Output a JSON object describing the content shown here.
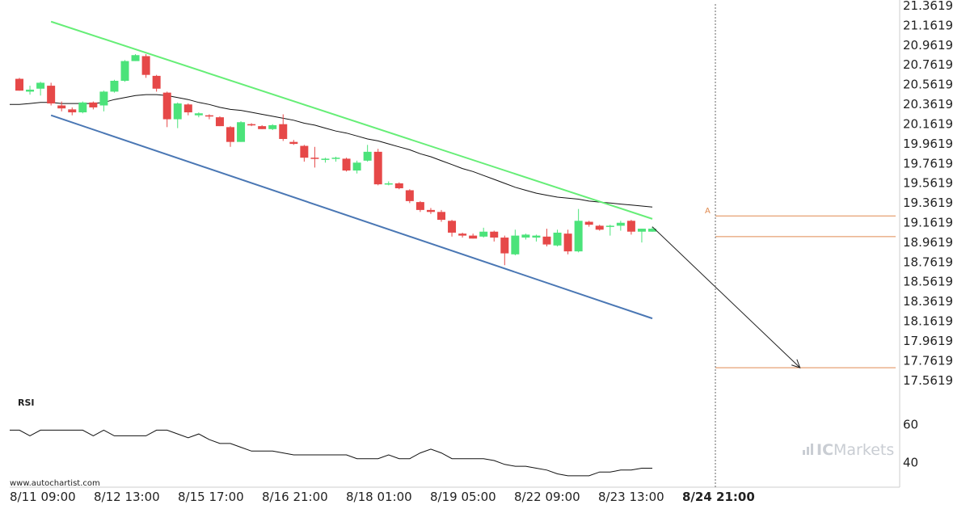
{
  "chart_data": {
    "type": "candlestick",
    "y_axis": {
      "ticks": [
        "21.3619",
        "21.1619",
        "20.9619",
        "20.7619",
        "20.5619",
        "20.3619",
        "20.1619",
        "19.9619",
        "19.7619",
        "19.5619",
        "19.3619",
        "19.1619",
        "18.9619",
        "18.7619",
        "18.5619",
        "18.3619",
        "18.1619",
        "17.9619",
        "17.7619",
        "17.5619"
      ],
      "range": [
        17.4619,
        21.3619
      ]
    },
    "x_axis": {
      "ticks": [
        "8/11 09:00",
        "8/12 13:00",
        "8/15 17:00",
        "8/16 21:00",
        "8/18 01:00",
        "8/19 05:00",
        "8/22 09:00",
        "8/23 13:00",
        "8/24 21:00"
      ],
      "highlight_last": true
    },
    "candles": [
      {
        "o": 20.62,
        "h": 20.63,
        "l": 20.5,
        "c": 20.5
      },
      {
        "o": 20.49,
        "h": 20.55,
        "l": 20.46,
        "c": 20.51
      },
      {
        "o": 20.52,
        "h": 20.59,
        "l": 20.45,
        "c": 20.58
      },
      {
        "o": 20.55,
        "h": 20.58,
        "l": 20.35,
        "c": 20.37
      },
      {
        "o": 20.35,
        "h": 20.39,
        "l": 20.29,
        "c": 20.32
      },
      {
        "o": 20.31,
        "h": 20.33,
        "l": 20.25,
        "c": 20.28
      },
      {
        "o": 20.28,
        "h": 20.39,
        "l": 20.27,
        "c": 20.38
      },
      {
        "o": 20.38,
        "h": 20.39,
        "l": 20.31,
        "c": 20.33
      },
      {
        "o": 20.35,
        "h": 20.5,
        "l": 20.29,
        "c": 20.49
      },
      {
        "o": 20.49,
        "h": 20.61,
        "l": 20.48,
        "c": 20.6
      },
      {
        "o": 20.6,
        "h": 20.81,
        "l": 20.59,
        "c": 20.8
      },
      {
        "o": 20.8,
        "h": 20.87,
        "l": 20.8,
        "c": 20.86
      },
      {
        "o": 20.85,
        "h": 20.87,
        "l": 20.63,
        "c": 20.66
      },
      {
        "o": 20.65,
        "h": 20.66,
        "l": 20.49,
        "c": 20.52
      },
      {
        "o": 20.48,
        "h": 20.49,
        "l": 20.13,
        "c": 20.21
      },
      {
        "o": 20.21,
        "h": 20.38,
        "l": 20.12,
        "c": 20.37
      },
      {
        "o": 20.36,
        "h": 20.37,
        "l": 20.25,
        "c": 20.28
      },
      {
        "o": 20.25,
        "h": 20.28,
        "l": 20.23,
        "c": 20.27
      },
      {
        "o": 20.25,
        "h": 20.26,
        "l": 20.21,
        "c": 20.24
      },
      {
        "o": 20.23,
        "h": 20.24,
        "l": 20.14,
        "c": 20.14
      },
      {
        "o": 20.13,
        "h": 20.14,
        "l": 19.93,
        "c": 19.98
      },
      {
        "o": 19.98,
        "h": 20.19,
        "l": 19.98,
        "c": 20.18
      },
      {
        "o": 20.16,
        "h": 20.17,
        "l": 20.14,
        "c": 20.15
      },
      {
        "o": 20.14,
        "h": 20.15,
        "l": 20.11,
        "c": 20.11
      },
      {
        "o": 20.11,
        "h": 20.16,
        "l": 20.1,
        "c": 20.15
      },
      {
        "o": 20.16,
        "h": 20.26,
        "l": 19.99,
        "c": 20.01
      },
      {
        "o": 19.98,
        "h": 20.0,
        "l": 19.95,
        "c": 19.96
      },
      {
        "o": 19.94,
        "h": 19.95,
        "l": 19.78,
        "c": 19.82
      },
      {
        "o": 19.82,
        "h": 19.93,
        "l": 19.72,
        "c": 19.81
      },
      {
        "o": 19.81,
        "h": 19.82,
        "l": 19.77,
        "c": 19.81
      },
      {
        "o": 19.81,
        "h": 19.83,
        "l": 19.78,
        "c": 19.82
      },
      {
        "o": 19.81,
        "h": 19.82,
        "l": 19.68,
        "c": 19.69
      },
      {
        "o": 19.69,
        "h": 19.79,
        "l": 19.66,
        "c": 19.77
      },
      {
        "o": 19.79,
        "h": 19.95,
        "l": 19.78,
        "c": 19.88
      },
      {
        "o": 19.88,
        "h": 19.91,
        "l": 19.54,
        "c": 19.55
      },
      {
        "o": 19.55,
        "h": 19.58,
        "l": 19.54,
        "c": 19.56
      },
      {
        "o": 19.56,
        "h": 19.57,
        "l": 19.5,
        "c": 19.51
      },
      {
        "o": 19.49,
        "h": 19.5,
        "l": 19.36,
        "c": 19.38
      },
      {
        "o": 19.37,
        "h": 19.38,
        "l": 19.27,
        "c": 19.29
      },
      {
        "o": 19.29,
        "h": 19.31,
        "l": 19.25,
        "c": 19.27
      },
      {
        "o": 19.27,
        "h": 19.29,
        "l": 19.17,
        "c": 19.19
      },
      {
        "o": 19.18,
        "h": 19.19,
        "l": 19.02,
        "c": 19.06
      },
      {
        "o": 19.05,
        "h": 19.06,
        "l": 19.01,
        "c": 19.03
      },
      {
        "o": 19.03,
        "h": 19.05,
        "l": 19.0,
        "c": 19.0
      },
      {
        "o": 19.02,
        "h": 19.11,
        "l": 19.01,
        "c": 19.07
      },
      {
        "o": 19.07,
        "h": 19.08,
        "l": 18.97,
        "c": 19.01
      },
      {
        "o": 19.01,
        "h": 19.03,
        "l": 18.73,
        "c": 18.85
      },
      {
        "o": 18.84,
        "h": 19.09,
        "l": 18.83,
        "c": 19.03
      },
      {
        "o": 19.01,
        "h": 19.05,
        "l": 18.99,
        "c": 19.04
      },
      {
        "o": 19.01,
        "h": 19.04,
        "l": 18.97,
        "c": 19.03
      },
      {
        "o": 19.02,
        "h": 19.1,
        "l": 18.92,
        "c": 18.94
      },
      {
        "o": 18.93,
        "h": 19.09,
        "l": 18.92,
        "c": 19.06
      },
      {
        "o": 19.05,
        "h": 19.09,
        "l": 18.84,
        "c": 18.87
      },
      {
        "o": 18.87,
        "h": 19.3,
        "l": 18.86,
        "c": 19.18
      },
      {
        "o": 19.17,
        "h": 19.18,
        "l": 19.12,
        "c": 19.14
      },
      {
        "o": 19.13,
        "h": 19.14,
        "l": 19.08,
        "c": 19.09
      },
      {
        "o": 19.12,
        "h": 19.14,
        "l": 19.03,
        "c": 19.13
      },
      {
        "o": 19.13,
        "h": 19.18,
        "l": 19.08,
        "c": 19.16
      },
      {
        "o": 19.18,
        "h": 19.19,
        "l": 19.04,
        "c": 19.07
      },
      {
        "o": 19.07,
        "h": 19.1,
        "l": 18.96,
        "c": 19.1
      },
      {
        "o": 19.07,
        "h": 19.12,
        "l": 19.07,
        "c": 19.1
      }
    ],
    "moving_average": [
      20.36,
      20.37,
      20.38,
      20.38,
      20.37,
      20.37,
      20.37,
      20.37,
      20.38,
      20.41,
      20.43,
      20.45,
      20.46,
      20.46,
      20.45,
      20.43,
      20.41,
      20.38,
      20.36,
      20.33,
      20.31,
      20.3,
      20.28,
      20.26,
      20.24,
      20.22,
      20.2,
      20.17,
      20.15,
      20.12,
      20.09,
      20.07,
      20.04,
      20.01,
      19.99,
      19.96,
      19.93,
      19.9,
      19.86,
      19.83,
      19.79,
      19.75,
      19.71,
      19.68,
      19.64,
      19.6,
      19.56,
      19.52,
      19.49,
      19.46,
      19.44,
      19.42,
      19.41,
      19.4,
      19.38,
      19.37,
      19.36,
      19.35,
      19.34,
      19.33,
      19.32
    ],
    "channel": {
      "upper": {
        "from": {
          "index": 3,
          "y": 21.2
        },
        "to": {
          "index": 60,
          "y": 19.2
        }
      },
      "lower": {
        "from": {
          "index": 3,
          "y": 20.25
        },
        "to": {
          "index": 60,
          "y": 18.19
        }
      }
    },
    "levels": [
      {
        "y": 19.23,
        "label": "A"
      },
      {
        "y": 19.02
      },
      {
        "y": 17.69
      }
    ],
    "forecast_arrow": {
      "from": {
        "index": 60,
        "y": 19.12
      },
      "to": {
        "index": 74,
        "y": 17.69
      }
    },
    "rsi": {
      "label": "RSI",
      "ticks": [
        "60",
        "40"
      ],
      "range": [
        27,
        75
      ],
      "values": [
        57,
        54,
        57,
        57,
        57,
        57,
        57,
        54,
        57,
        54,
        54,
        54,
        54,
        57,
        57,
        55,
        53,
        55,
        52,
        50,
        50,
        48,
        46,
        46,
        46,
        45,
        44,
        44,
        44,
        44,
        44,
        44,
        42,
        42,
        42,
        44,
        42,
        42,
        45,
        47,
        45,
        42,
        42,
        42,
        42,
        41,
        39,
        38,
        38,
        37,
        36,
        34,
        33,
        33,
        33,
        35,
        35,
        36,
        36,
        37,
        37
      ]
    },
    "colors": {
      "bull": "#4be37a",
      "bear": "#e64848",
      "upper_line": "#66ee77",
      "lower_line": "#4a77b4",
      "moving_average": "#111111",
      "level": "#e08a50",
      "arrow": "#222222",
      "axis_border": "#cccccc"
    }
  },
  "footer": {
    "source": "www.autochartist.com"
  },
  "watermark": {
    "prefix": "IC",
    "suffix": "Markets"
  }
}
